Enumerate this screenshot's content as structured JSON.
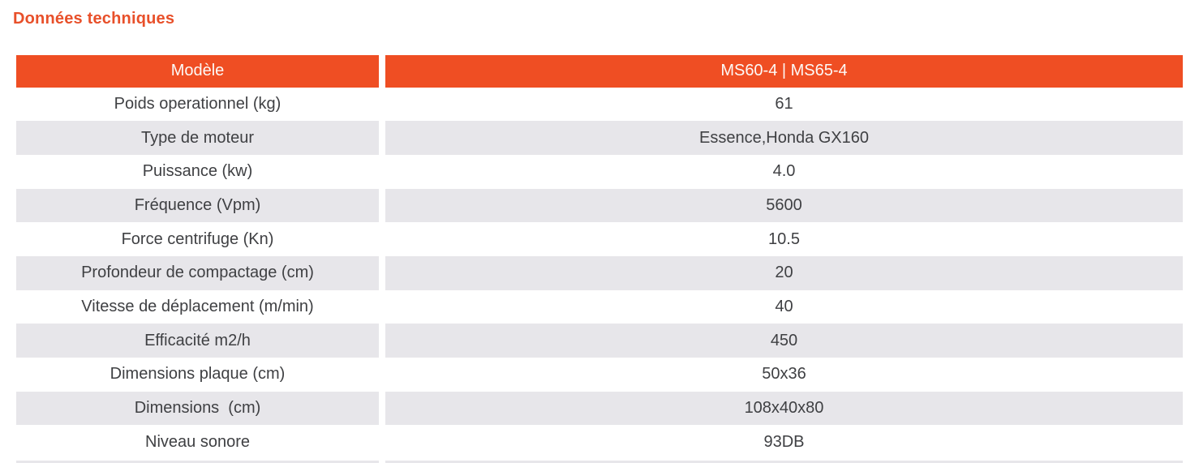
{
  "title": "Données techniques",
  "colors": {
    "accent_orange": "#EF4E23",
    "title_orange": "#E8502A",
    "row_stripe_gray": "#E7E6EA",
    "cell_text": "#3F4043",
    "header_text": "#FDF9F6"
  },
  "table": {
    "header": {
      "model_label": "Modèle",
      "model_value": "MS60-4 | MS65-4"
    },
    "rows": [
      {
        "label": "Poids operationnel (kg)",
        "value": "61"
      },
      {
        "label": "Type de moteur",
        "value": "Essence,Honda GX160"
      },
      {
        "label": "Puissance (kw)",
        "value": "4.0"
      },
      {
        "label": "Fréquence (Vpm)",
        "value": "5600"
      },
      {
        "label": "Force centrifuge (Kn)",
        "value": "10.5"
      },
      {
        "label": "Profondeur de compactage (cm)",
        "value": "20"
      },
      {
        "label": "Vitesse de déplacement (m/min)",
        "value": "40"
      },
      {
        "label": "Efficacité m2/h",
        "value": "450"
      },
      {
        "label": "Dimensions plaque (cm)",
        "value": "50x36"
      },
      {
        "label": "Dimensions  (cm)",
        "value": "108x40x80"
      },
      {
        "label": "Niveau sonore",
        "value": "93DB"
      }
    ]
  }
}
